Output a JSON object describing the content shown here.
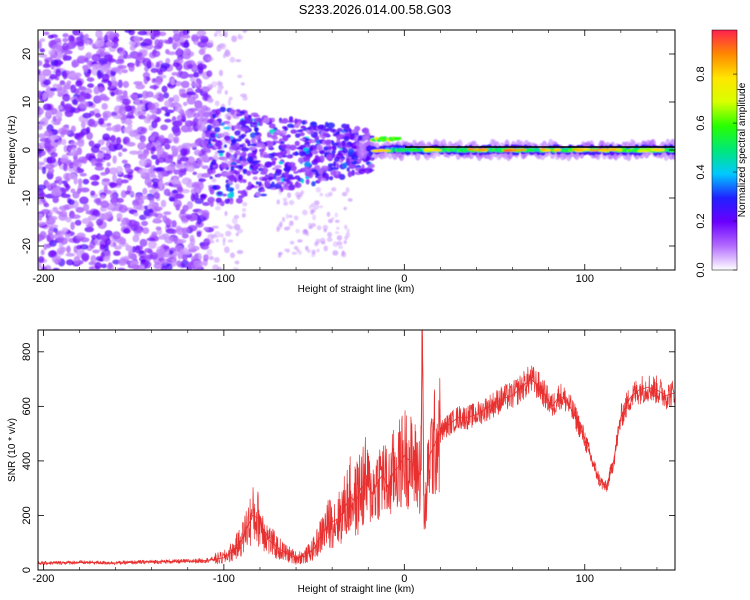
{
  "title": "S233.2026.014.00.58.G03",
  "chart_data": [
    {
      "type": "heatmap",
      "xlabel": "Height of straight line (km)",
      "ylabel": "Frequency (Hz)",
      "xlim": [
        -203,
        150
      ],
      "ylim": [
        -25,
        25
      ],
      "xticks": [
        "-200",
        "-100",
        "0",
        "100"
      ],
      "xtick_values": [
        -200,
        -100,
        0,
        100
      ],
      "yticks": [
        "-20",
        "-10",
        "0",
        "10",
        "20"
      ],
      "ytick_values": [
        -20,
        -10,
        0,
        10,
        20
      ],
      "colorbar": {
        "label": "Normalized spectral amplitude",
        "range": [
          0,
          0.98
        ],
        "ticks": [
          "0.0",
          "0.2",
          "0.4",
          "0.6",
          "0.8"
        ],
        "tick_values": [
          0.0,
          0.2,
          0.4,
          0.6,
          0.8
        ],
        "colors": [
          "#ffffff",
          "#b46cff",
          "#6a00ff",
          "#2020ff",
          "#00c8ff",
          "#00e878",
          "#28ff00",
          "#d8ff00",
          "#ffe600",
          "#ff8800",
          "#ff2050"
        ]
      },
      "regions": [
        {
          "x_range": [
            -203,
            -108
          ],
          "f_range": [
            -25,
            25
          ],
          "amplitude": "low",
          "note": "diffuse noise"
        },
        {
          "x_range": [
            -108,
            -30
          ],
          "f_range": [
            -9,
            9
          ],
          "amplitude": "medium",
          "note": "scattered energy converging toward 0 Hz"
        },
        {
          "x_range": [
            -30,
            150
          ],
          "f_range": [
            -2,
            2
          ],
          "amplitude": "high",
          "note": "narrow band centred at 0 Hz"
        }
      ]
    },
    {
      "type": "line",
      "xlabel": "Height of straight line (km)",
      "ylabel": "SNR (10 * v/v)",
      "xlim": [
        -203,
        150
      ],
      "ylim": [
        0,
        880
      ],
      "xticks": [
        "-200",
        "-100",
        "0",
        "100"
      ],
      "xtick_values": [
        -200,
        -100,
        0,
        100
      ],
      "yticks": [
        "0",
        "200",
        "400",
        "600",
        "800"
      ],
      "ytick_values": [
        0,
        200,
        400,
        600,
        800
      ],
      "color": "#e83030",
      "series": [
        {
          "name": "SNR",
          "x": [
            -203,
            -180,
            -160,
            -140,
            -120,
            -110,
            -100,
            -95,
            -90,
            -87,
            -84,
            -81,
            -78,
            -75,
            -70,
            -65,
            -60,
            -55,
            -50,
            -45,
            -42,
            -39,
            -36,
            -33,
            -30,
            -27,
            -24,
            -21,
            -18,
            -15,
            -12,
            -9,
            -6,
            -3,
            0,
            3,
            6,
            9,
            10,
            11,
            12,
            14,
            18,
            22,
            26,
            30,
            35,
            40,
            45,
            50,
            55,
            60,
            65,
            70,
            72,
            75,
            78,
            82,
            86,
            90,
            95,
            100,
            104,
            108,
            112,
            116,
            120,
            125,
            130,
            135,
            140,
            145,
            150
          ],
          "y": [
            25,
            28,
            26,
            30,
            32,
            35,
            45,
            70,
            110,
            160,
            200,
            190,
            150,
            110,
            80,
            60,
            45,
            50,
            80,
            140,
            170,
            180,
            190,
            230,
            270,
            250,
            300,
            320,
            280,
            320,
            350,
            300,
            360,
            380,
            420,
            400,
            380,
            350,
            860,
            150,
            250,
            420,
            480,
            520,
            540,
            560,
            560,
            570,
            590,
            610,
            630,
            640,
            670,
            700,
            690,
            670,
            640,
            600,
            640,
            620,
            560,
            480,
            400,
            330,
            300,
            400,
            560,
            630,
            660,
            670,
            660,
            640,
            650
          ]
        }
      ]
    }
  ]
}
